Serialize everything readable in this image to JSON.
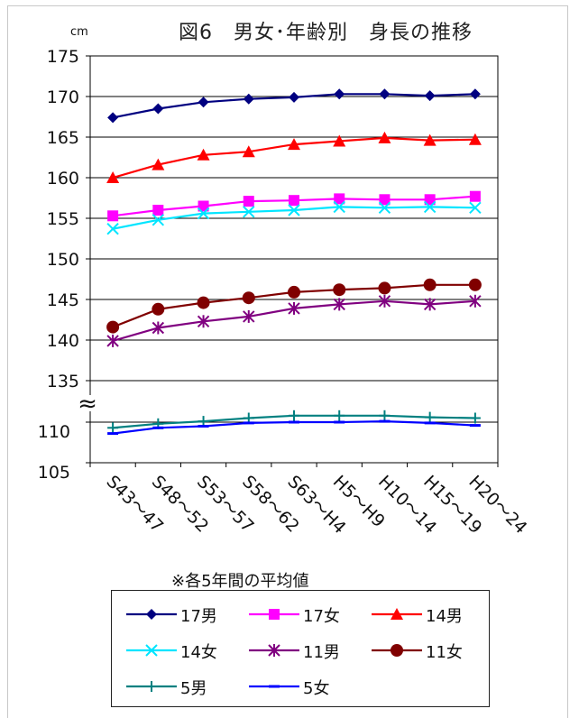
{
  "chart_data": {
    "type": "line",
    "title": "図6　男女･年齢別　身長の推移",
    "unit_label": "cm",
    "note": "※各5年間の平均値",
    "categories": [
      "S43～47",
      "S48～52",
      "S53～57",
      "S58～62",
      "S63～H4",
      "H5～H9",
      "H10～14",
      "H15～19",
      "H20～24"
    ],
    "y_ticks_upper": [
      "175",
      "170",
      "165",
      "160",
      "155",
      "150",
      "145",
      "140",
      "135"
    ],
    "y_ticks_lower": [
      "110",
      "105"
    ],
    "axis_break_symbol": "≈",
    "grid": true,
    "legend_placement": "bottom",
    "series": [
      {
        "name": "17男",
        "color": "#000080",
        "marker": "diamond",
        "values": [
          167.4,
          168.5,
          169.3,
          169.7,
          169.9,
          170.3,
          170.3,
          170.1,
          170.3
        ]
      },
      {
        "name": "17女",
        "color": "#ff00ff",
        "marker": "square",
        "values": [
          155.3,
          156.0,
          156.5,
          157.1,
          157.2,
          157.4,
          157.3,
          157.3,
          157.7
        ]
      },
      {
        "name": "14男",
        "color": "#ff0000",
        "marker": "triangle",
        "values": [
          160.0,
          161.6,
          162.8,
          163.2,
          164.1,
          164.5,
          164.9,
          164.6,
          164.7
        ]
      },
      {
        "name": "14女",
        "color": "#00e5ff",
        "marker": "x",
        "values": [
          153.7,
          154.8,
          155.6,
          155.8,
          156.0,
          156.4,
          156.3,
          156.4,
          156.3
        ]
      },
      {
        "name": "11男",
        "color": "#800080",
        "marker": "star",
        "values": [
          139.9,
          141.5,
          142.3,
          142.9,
          143.9,
          144.4,
          144.8,
          144.4,
          144.8
        ]
      },
      {
        "name": "11女",
        "color": "#800000",
        "marker": "circle",
        "values": [
          141.6,
          143.8,
          144.6,
          145.2,
          145.9,
          146.2,
          146.4,
          146.8,
          146.8
        ]
      },
      {
        "name": "5男",
        "color": "#008080",
        "marker": "plus",
        "values": [
          109.3,
          109.8,
          110.1,
          110.5,
          110.8,
          110.8,
          110.8,
          110.6,
          110.5
        ]
      },
      {
        "name": "5女",
        "color": "#0000ff",
        "marker": "dash",
        "values": [
          108.6,
          109.3,
          109.5,
          109.9,
          110.0,
          110.0,
          110.1,
          109.9,
          109.6
        ]
      }
    ]
  }
}
